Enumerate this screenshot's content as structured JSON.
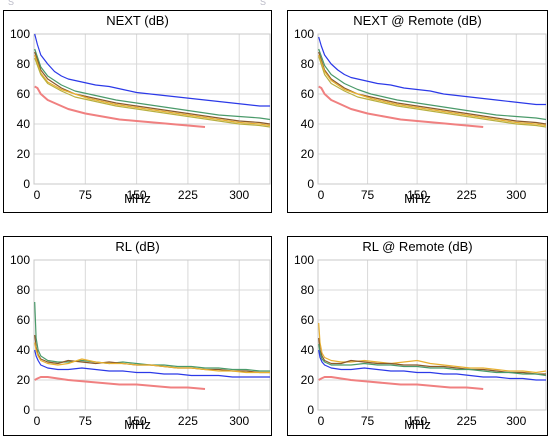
{
  "fragments": {
    "top_left": "S",
    "top_mid": "S"
  },
  "chart_data": [
    {
      "type": "line",
      "title": "NEXT (dB)",
      "xlabel": "MHz",
      "ylabel": "",
      "xlim": [
        0,
        345
      ],
      "ylim": [
        0,
        100
      ],
      "xticks": [
        "0",
        "75",
        "150",
        "225",
        "300"
      ],
      "yticks": [
        "0",
        "20",
        "40",
        "60",
        "80",
        "100"
      ],
      "grid": true,
      "series": [
        {
          "color": "#2b39e8",
          "x": [
            1,
            5,
            10,
            20,
            30,
            40,
            50,
            70,
            90,
            110,
            130,
            150,
            170,
            190,
            210,
            230,
            250,
            270,
            290,
            310,
            330,
            345
          ],
          "y": [
            100,
            93,
            86,
            80,
            75,
            72,
            70,
            68,
            66,
            65,
            63,
            61,
            60,
            59,
            58,
            57,
            56,
            55,
            54,
            53,
            52,
            52
          ]
        },
        {
          "color": "#4a9a6a",
          "x": [
            1,
            10,
            20,
            40,
            60,
            80,
            100,
            120,
            150,
            180,
            210,
            240,
            270,
            300,
            330,
            345
          ],
          "y": [
            90,
            78,
            72,
            66,
            62,
            60,
            58,
            56,
            54,
            52,
            50,
            48,
            46,
            45,
            44,
            43
          ]
        },
        {
          "color": "#8b5a2b",
          "x": [
            1,
            10,
            20,
            40,
            60,
            80,
            100,
            120,
            150,
            180,
            210,
            240,
            270,
            300,
            330,
            345
          ],
          "y": [
            88,
            76,
            70,
            64,
            60,
            58,
            56,
            54,
            52,
            50,
            48,
            46,
            44,
            42,
            41,
            40
          ]
        },
        {
          "color": "#e8b030",
          "x": [
            1,
            10,
            20,
            40,
            60,
            80,
            100,
            120,
            150,
            180,
            210,
            240,
            270,
            300,
            330,
            345
          ],
          "y": [
            86,
            74,
            68,
            63,
            60,
            57,
            55,
            53,
            51,
            49,
            47,
            45,
            43,
            41,
            40,
            39
          ]
        },
        {
          "color": "#b8b040",
          "x": [
            1,
            10,
            20,
            40,
            60,
            80,
            100,
            120,
            150,
            180,
            210,
            240,
            270,
            300,
            330,
            345
          ],
          "y": [
            84,
            73,
            67,
            62,
            58,
            56,
            54,
            52,
            50,
            48,
            46,
            44,
            42,
            40,
            39,
            38
          ]
        },
        {
          "color": "#f08080",
          "x": [
            1,
            5,
            10,
            20,
            35,
            50,
            75,
            100,
            125,
            150,
            175,
            200,
            225,
            250
          ],
          "y": [
            65,
            64,
            60,
            56,
            53,
            50,
            47,
            45,
            43,
            42,
            41,
            40,
            39,
            38
          ]
        }
      ]
    },
    {
      "type": "line",
      "title": "NEXT @ Remote (dB)",
      "xlabel": "MHz",
      "ylabel": "",
      "xlim": [
        0,
        345
      ],
      "ylim": [
        0,
        100
      ],
      "xticks": [
        "0",
        "75",
        "150",
        "225",
        "300"
      ],
      "yticks": [
        "0",
        "20",
        "40",
        "60",
        "80",
        "100"
      ],
      "grid": true,
      "series": [
        {
          "color": "#2b39e8",
          "x": [
            1,
            5,
            10,
            20,
            30,
            40,
            50,
            70,
            90,
            110,
            130,
            150,
            170,
            190,
            210,
            230,
            250,
            270,
            290,
            310,
            330,
            345
          ],
          "y": [
            98,
            92,
            86,
            80,
            76,
            73,
            71,
            69,
            67,
            66,
            64,
            63,
            62,
            60,
            59,
            58,
            57,
            56,
            55,
            54,
            53,
            53
          ]
        },
        {
          "color": "#4a9a6a",
          "x": [
            1,
            10,
            20,
            40,
            60,
            80,
            100,
            120,
            150,
            180,
            210,
            240,
            270,
            300,
            330,
            345
          ],
          "y": [
            90,
            79,
            73,
            67,
            63,
            60,
            58,
            56,
            54,
            52,
            50,
            48,
            46,
            45,
            44,
            43
          ]
        },
        {
          "color": "#8b5a2b",
          "x": [
            1,
            10,
            20,
            40,
            60,
            80,
            100,
            120,
            150,
            180,
            210,
            240,
            270,
            300,
            330,
            345
          ],
          "y": [
            88,
            76,
            70,
            64,
            60,
            58,
            56,
            54,
            52,
            50,
            48,
            46,
            44,
            42,
            41,
            40
          ]
        },
        {
          "color": "#e8b030",
          "x": [
            1,
            10,
            20,
            40,
            60,
            80,
            100,
            120,
            150,
            180,
            210,
            240,
            270,
            300,
            330,
            345
          ],
          "y": [
            86,
            75,
            69,
            63,
            60,
            57,
            55,
            53,
            51,
            49,
            47,
            45,
            43,
            41,
            40,
            39
          ]
        },
        {
          "color": "#b8b040",
          "x": [
            1,
            10,
            20,
            40,
            60,
            80,
            100,
            120,
            150,
            180,
            210,
            240,
            270,
            300,
            330,
            345
          ],
          "y": [
            85,
            73,
            67,
            62,
            58,
            56,
            54,
            52,
            50,
            48,
            46,
            44,
            42,
            40,
            39,
            38
          ]
        },
        {
          "color": "#f08080",
          "x": [
            1,
            5,
            10,
            20,
            35,
            50,
            75,
            100,
            125,
            150,
            175,
            200,
            225,
            250
          ],
          "y": [
            65,
            64,
            60,
            56,
            53,
            50,
            47,
            45,
            43,
            42,
            41,
            40,
            39,
            38
          ]
        }
      ]
    },
    {
      "type": "line",
      "title": "RL (dB)",
      "xlabel": "MHz",
      "ylabel": "",
      "xlim": [
        0,
        345
      ],
      "ylim": [
        0,
        100
      ],
      "xticks": [
        "0",
        "75",
        "150",
        "225",
        "300"
      ],
      "yticks": [
        "0",
        "20",
        "40",
        "60",
        "80",
        "100"
      ],
      "grid": true,
      "series": [
        {
          "color": "#4a9a6a",
          "x": [
            1,
            3,
            6,
            10,
            20,
            35,
            50,
            70,
            90,
            110,
            130,
            150,
            170,
            190,
            210,
            230,
            250,
            270,
            290,
            310,
            330,
            345
          ],
          "y": [
            72,
            48,
            40,
            36,
            33,
            32,
            32,
            33,
            32,
            31,
            32,
            31,
            30,
            30,
            29,
            29,
            28,
            28,
            27,
            27,
            26,
            26
          ]
        },
        {
          "color": "#8b5a2b",
          "x": [
            1,
            3,
            6,
            10,
            20,
            35,
            50,
            70,
            90,
            110,
            130,
            150,
            170,
            190,
            210,
            230,
            250,
            270,
            290,
            310,
            330,
            345
          ],
          "y": [
            50,
            42,
            37,
            34,
            32,
            31,
            33,
            32,
            31,
            32,
            31,
            30,
            30,
            29,
            28,
            28,
            27,
            27,
            26,
            26,
            25,
            25
          ]
        },
        {
          "color": "#e8b030",
          "x": [
            1,
            3,
            6,
            10,
            20,
            35,
            50,
            70,
            90,
            110,
            130,
            150,
            170,
            190,
            210,
            230,
            250,
            270,
            290,
            310,
            330,
            345
          ],
          "y": [
            45,
            40,
            36,
            33,
            31,
            30,
            31,
            34,
            32,
            31,
            31,
            30,
            30,
            29,
            28,
            28,
            27,
            26,
            26,
            25,
            25,
            25
          ]
        },
        {
          "color": "#2b39e8",
          "x": [
            1,
            3,
            6,
            10,
            20,
            35,
            50,
            70,
            90,
            110,
            130,
            150,
            170,
            190,
            210,
            230,
            250,
            270,
            290,
            310,
            330,
            345
          ],
          "y": [
            40,
            36,
            33,
            30,
            28,
            27,
            27,
            28,
            27,
            26,
            26,
            25,
            25,
            24,
            24,
            23,
            23,
            23,
            22,
            22,
            22,
            22
          ]
        },
        {
          "color": "#f08080",
          "x": [
            1,
            5,
            10,
            20,
            35,
            50,
            75,
            100,
            125,
            150,
            175,
            200,
            225,
            250
          ],
          "y": [
            20,
            21,
            22,
            22,
            21,
            20,
            19,
            18,
            17,
            17,
            16,
            15,
            15,
            14
          ]
        }
      ]
    },
    {
      "type": "line",
      "title": "RL @ Remote (dB)",
      "xlabel": "MHz",
      "ylabel": "",
      "xlim": [
        0,
        345
      ],
      "ylim": [
        0,
        100
      ],
      "xticks": [
        "0",
        "75",
        "150",
        "225",
        "300"
      ],
      "yticks": [
        "0",
        "20",
        "40",
        "60",
        "80",
        "100"
      ],
      "grid": true,
      "series": [
        {
          "color": "#e8b030",
          "x": [
            1,
            3,
            6,
            10,
            20,
            35,
            50,
            70,
            90,
            110,
            130,
            150,
            170,
            190,
            210,
            230,
            250,
            270,
            290,
            310,
            330,
            345
          ],
          "y": [
            58,
            45,
            38,
            35,
            33,
            32,
            32,
            33,
            32,
            31,
            32,
            33,
            31,
            30,
            29,
            28,
            28,
            27,
            26,
            26,
            25,
            26
          ]
        },
        {
          "color": "#8b5a2b",
          "x": [
            1,
            3,
            6,
            10,
            20,
            35,
            50,
            70,
            90,
            110,
            130,
            150,
            170,
            190,
            210,
            230,
            250,
            270,
            290,
            310,
            330,
            345
          ],
          "y": [
            48,
            40,
            36,
            33,
            31,
            31,
            33,
            32,
            31,
            31,
            30,
            30,
            29,
            29,
            28,
            27,
            27,
            26,
            25,
            25,
            24,
            24
          ]
        },
        {
          "color": "#4a9a6a",
          "x": [
            1,
            3,
            6,
            10,
            20,
            35,
            50,
            70,
            90,
            110,
            130,
            150,
            170,
            190,
            210,
            230,
            250,
            270,
            290,
            310,
            330,
            345
          ],
          "y": [
            44,
            38,
            34,
            32,
            30,
            30,
            30,
            31,
            30,
            30,
            29,
            29,
            28,
            28,
            27,
            27,
            26,
            25,
            25,
            24,
            24,
            23
          ]
        },
        {
          "color": "#2b39e8",
          "x": [
            1,
            3,
            6,
            10,
            20,
            35,
            50,
            70,
            90,
            110,
            130,
            150,
            170,
            190,
            210,
            230,
            250,
            270,
            290,
            310,
            330,
            345
          ],
          "y": [
            40,
            35,
            32,
            30,
            28,
            27,
            27,
            28,
            27,
            26,
            26,
            25,
            25,
            24,
            24,
            23,
            22,
            22,
            21,
            21,
            20,
            20
          ]
        },
        {
          "color": "#f08080",
          "x": [
            1,
            5,
            10,
            20,
            35,
            50,
            75,
            100,
            125,
            150,
            175,
            200,
            225,
            250
          ],
          "y": [
            20,
            21,
            22,
            22,
            21,
            20,
            19,
            18,
            17,
            17,
            16,
            15,
            15,
            14
          ]
        }
      ]
    }
  ]
}
